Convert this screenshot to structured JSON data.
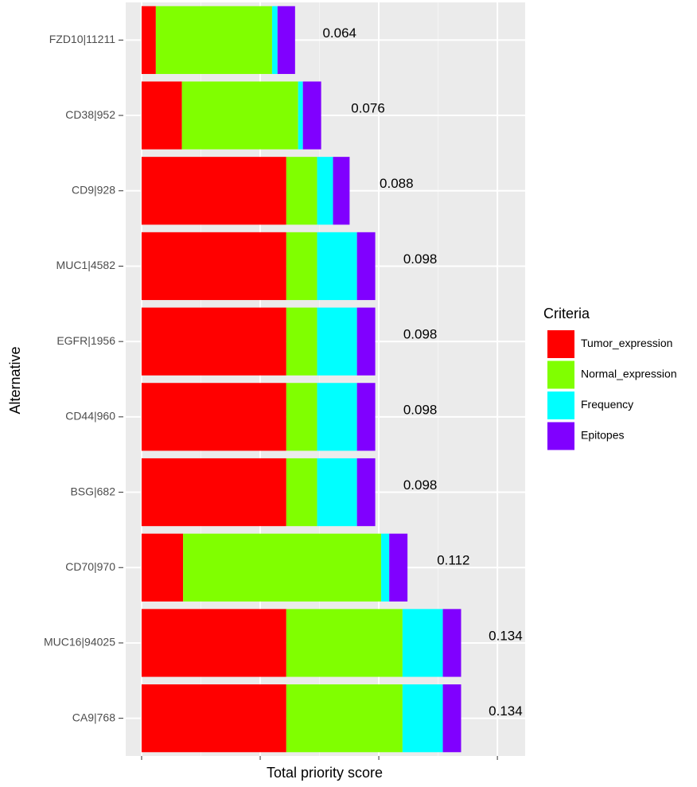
{
  "chart_data": {
    "type": "bar",
    "orientation": "horizontal",
    "stacked": true,
    "x_label": "Total priority score",
    "y_label": "Alternative",
    "categories": [
      "FZD10|11211",
      "CD38|952",
      "CD9|928",
      "MUC1|4582",
      "EGFR|1956",
      "CD44|960",
      "BSG|682",
      "CD70|970",
      "MUC16|94025",
      "CA9|768"
    ],
    "series": [
      {
        "name": "Tumor_expression",
        "color": "#ff0000",
        "values": [
          0.006,
          0.017,
          0.061,
          0.061,
          0.061,
          0.061,
          0.061,
          0.0175,
          0.061,
          0.061
        ]
      },
      {
        "name": "Normal_expression",
        "color": "#80ff00",
        "values": [
          0.049,
          0.049,
          0.013,
          0.013,
          0.013,
          0.013,
          0.013,
          0.0835,
          0.049,
          0.049
        ]
      },
      {
        "name": "Frequency",
        "color": "#00ffff",
        "values": [
          0.0023,
          0.002,
          0.0067,
          0.0168,
          0.0168,
          0.0168,
          0.0168,
          0.0034,
          0.017,
          0.017
        ]
      },
      {
        "name": "Epitopes",
        "color": "#8000ff",
        "values": [
          0.0074,
          0.0077,
          0.007,
          0.0077,
          0.0077,
          0.0077,
          0.0077,
          0.0077,
          0.0077,
          0.0077
        ]
      }
    ],
    "totals": [
      0.064,
      0.076,
      0.088,
      0.098,
      0.098,
      0.098,
      0.098,
      0.112,
      0.134,
      0.134
    ],
    "legend_title": "Criteria",
    "legend": "right",
    "xlim": [
      -0.0067,
      0.1617
    ],
    "xticks": [
      0,
      0.05,
      0.1,
      0.15
    ],
    "xminorticks": [
      0.025,
      0.075,
      0.125
    ],
    "grid": true
  }
}
